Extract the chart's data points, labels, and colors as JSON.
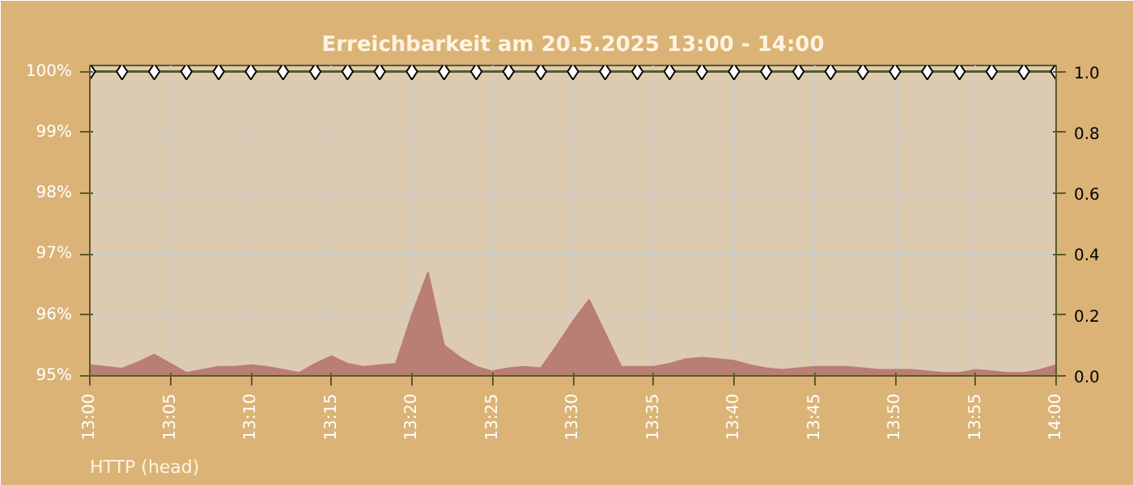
{
  "chart_data": {
    "type": "line",
    "title": "Erreichbarkeit am 20.5.2025 13:00 - 14:00",
    "annotations": [
      "HTTP (head)"
    ],
    "xlim": [
      "2025-05-20T13:00",
      "2025-05-20T14:00"
    ],
    "xticks": [
      {
        "value": "2025-05-20T13:00",
        "label": "13:00"
      },
      {
        "value": "2025-05-20T13:05",
        "label": "13:05"
      },
      {
        "value": "2025-05-20T13:10",
        "label": "13:10"
      },
      {
        "value": "2025-05-20T13:15",
        "label": "13:15"
      },
      {
        "value": "2025-05-20T13:20",
        "label": "13:20"
      },
      {
        "value": "2025-05-20T13:25",
        "label": "13:25"
      },
      {
        "value": "2025-05-20T13:30",
        "label": "13:30"
      },
      {
        "value": "2025-05-20T13:35",
        "label": "13:35"
      },
      {
        "value": "2025-05-20T13:40",
        "label": "13:40"
      },
      {
        "value": "2025-05-20T13:45",
        "label": "13:45"
      },
      {
        "value": "2025-05-20T13:50",
        "label": "13:50"
      },
      {
        "value": "2025-05-20T13:55",
        "label": "13:55"
      },
      {
        "value": "2025-05-20T14:00",
        "label": "14:00"
      }
    ],
    "ylim": [
      95,
      100.1
    ],
    "yticks": [
      {
        "value": 95,
        "label": "95%"
      },
      {
        "value": 96,
        "label": "96%"
      },
      {
        "value": 97,
        "label": "97%"
      },
      {
        "value": 98,
        "label": "98%"
      },
      {
        "value": 99,
        "label": "99%"
      },
      {
        "value": 100,
        "label": "100%"
      }
    ],
    "y2lim": [
      0,
      1.02
    ],
    "y2ticks": [
      {
        "value": 0,
        "label": "0.0"
      },
      {
        "value": 0.2,
        "label": "0.2"
      },
      {
        "value": 0.4,
        "label": "0.4"
      },
      {
        "value": 0.6,
        "label": "0.6"
      },
      {
        "value": 0.8,
        "label": "0.8"
      },
      {
        "value": 1,
        "label": "1.0"
      }
    ],
    "grid": true,
    "series": [
      {
        "type": "area",
        "axis": "y2",
        "color": "#b97e74",
        "x": [
          "2025-05-20T13:00",
          "2025-05-20T13:01",
          "2025-05-20T13:02",
          "2025-05-20T13:03",
          "2025-05-20T13:04",
          "2025-05-20T13:05",
          "2025-05-20T13:06",
          "2025-05-20T13:07",
          "2025-05-20T13:08",
          "2025-05-20T13:09",
          "2025-05-20T13:10",
          "2025-05-20T13:11",
          "2025-05-20T13:12",
          "2025-05-20T13:13",
          "2025-05-20T13:14",
          "2025-05-20T13:15",
          "2025-05-20T13:16",
          "2025-05-20T13:17",
          "2025-05-20T13:18",
          "2025-05-20T13:19",
          "2025-05-20T13:20",
          "2025-05-20T13:21",
          "2025-05-20T13:22",
          "2025-05-20T13:23",
          "2025-05-20T13:24",
          "2025-05-20T13:25",
          "2025-05-20T13:26",
          "2025-05-20T13:27",
          "2025-05-20T13:28",
          "2025-05-20T13:29",
          "2025-05-20T13:30",
          "2025-05-20T13:31",
          "2025-05-20T13:32",
          "2025-05-20T13:33",
          "2025-05-20T13:34",
          "2025-05-20T13:35",
          "2025-05-20T13:36",
          "2025-05-20T13:37",
          "2025-05-20T13:38",
          "2025-05-20T13:39",
          "2025-05-20T13:40",
          "2025-05-20T13:41",
          "2025-05-20T13:42",
          "2025-05-20T13:43",
          "2025-05-20T13:44",
          "2025-05-20T13:45",
          "2025-05-20T13:46",
          "2025-05-20T13:47",
          "2025-05-20T13:48",
          "2025-05-20T13:49",
          "2025-05-20T13:50",
          "2025-05-20T13:51",
          "2025-05-20T13:52",
          "2025-05-20T13:53",
          "2025-05-20T13:54",
          "2025-05-20T13:55",
          "2025-05-20T13:56",
          "2025-05-20T13:57",
          "2025-05-20T13:58",
          "2025-05-20T13:59",
          "2025-05-20T14:00"
        ],
        "values": [
          0.035,
          0.03,
          0.024,
          0.045,
          0.07,
          0.04,
          0.01,
          0.02,
          0.03,
          0.03,
          0.035,
          0.03,
          0.02,
          0.01,
          0.04,
          0.065,
          0.04,
          0.03,
          0.035,
          0.04,
          0.2,
          0.34,
          0.1,
          0.06,
          0.03,
          0.015,
          0.025,
          0.03,
          0.025,
          0.1,
          0.18,
          0.25,
          0.14,
          0.03,
          0.03,
          0.03,
          0.04,
          0.055,
          0.06,
          0.055,
          0.05,
          0.035,
          0.025,
          0.02,
          0.025,
          0.03,
          0.03,
          0.03,
          0.025,
          0.02,
          0.02,
          0.02,
          0.015,
          0.01,
          0.01,
          0.02,
          0.015,
          0.01,
          0.01,
          0.02,
          0.035
        ]
      },
      {
        "color": "#5a5a2a",
        "marker": "diamond",
        "x": [
          "2025-05-20T13:00",
          "2025-05-20T13:02",
          "2025-05-20T13:04",
          "2025-05-20T13:06",
          "2025-05-20T13:08",
          "2025-05-20T13:10",
          "2025-05-20T13:12",
          "2025-05-20T13:14",
          "2025-05-20T13:16",
          "2025-05-20T13:18",
          "2025-05-20T13:20",
          "2025-05-20T13:22",
          "2025-05-20T13:24",
          "2025-05-20T13:26",
          "2025-05-20T13:28",
          "2025-05-20T13:30",
          "2025-05-20T13:32",
          "2025-05-20T13:34",
          "2025-05-20T13:36",
          "2025-05-20T13:38",
          "2025-05-20T13:40",
          "2025-05-20T13:42",
          "2025-05-20T13:44",
          "2025-05-20T13:46",
          "2025-05-20T13:48",
          "2025-05-20T13:50",
          "2025-05-20T13:52",
          "2025-05-20T13:54",
          "2025-05-20T13:56",
          "2025-05-20T13:58",
          "2025-05-20T14:00"
        ],
        "values": [
          100,
          100,
          100,
          100,
          100,
          100,
          100,
          100,
          100,
          100,
          100,
          100,
          100,
          100,
          100,
          100,
          100,
          100,
          100,
          100,
          100,
          100,
          100,
          100,
          100,
          100,
          100,
          100,
          100,
          100,
          100
        ]
      }
    ]
  }
}
